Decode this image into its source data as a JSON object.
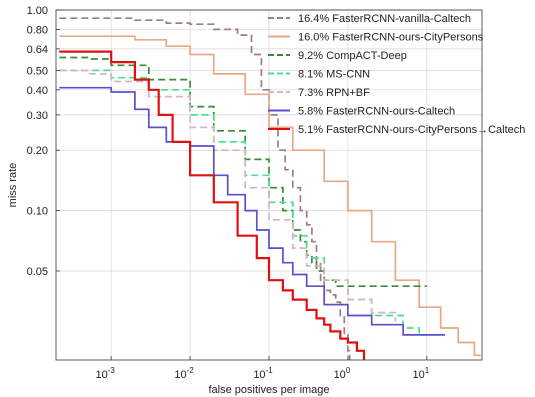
{
  "chart_data": {
    "type": "line",
    "title": "",
    "xlabel": "false positives per image",
    "ylabel": "miss rate",
    "x_scale": "log",
    "y_scale": "log",
    "xlim": [
      0.0002,
      50
    ],
    "ylim": [
      0.018,
      1.0
    ],
    "grid": true,
    "legend_position": "top-right",
    "x_ticks": [
      {
        "value": 0.001,
        "base": "10",
        "exp": "-3"
      },
      {
        "value": 0.01,
        "base": "10",
        "exp": "-2"
      },
      {
        "value": 0.1,
        "base": "10",
        "exp": "-1"
      },
      {
        "value": 1,
        "base": "10",
        "exp": "0"
      },
      {
        "value": 10,
        "base": "10",
        "exp": "1"
      }
    ],
    "y_ticks": [
      {
        "value": 1.0,
        "label": "1.00"
      },
      {
        "value": 0.8,
        "label": "0.80"
      },
      {
        "value": 0.64,
        "label": "0.64"
      },
      {
        "value": 0.5,
        "label": "0.50"
      },
      {
        "value": 0.4,
        "label": "0.40"
      },
      {
        "value": 0.3,
        "label": "0.30"
      },
      {
        "value": 0.2,
        "label": "0.20"
      },
      {
        "value": 0.1,
        "label": "0.10"
      },
      {
        "value": 0.05,
        "label": "0.05"
      }
    ],
    "series": [
      {
        "name": "16.4% FasterRCNN-vanilla-Caltech",
        "color": "#9b7b8b",
        "dash": "dashed",
        "points": [
          [
            0.00022,
            0.91
          ],
          [
            0.001,
            0.91
          ],
          [
            0.002,
            0.89
          ],
          [
            0.005,
            0.86
          ],
          [
            0.01,
            0.85
          ],
          [
            0.02,
            0.8
          ],
          [
            0.04,
            0.75
          ],
          [
            0.06,
            0.6
          ],
          [
            0.08,
            0.4
          ],
          [
            0.1,
            0.3
          ],
          [
            0.13,
            0.2
          ],
          [
            0.16,
            0.16
          ],
          [
            0.2,
            0.13
          ],
          [
            0.25,
            0.1
          ],
          [
            0.3,
            0.085
          ],
          [
            0.35,
            0.07
          ],
          [
            0.4,
            0.055
          ],
          [
            0.45,
            0.045
          ],
          [
            0.5,
            0.04
          ],
          [
            0.6,
            0.038
          ],
          [
            0.7,
            0.035
          ],
          [
            0.8,
            0.03
          ],
          [
            0.9,
            0.024
          ],
          [
            1.0,
            0.02
          ],
          [
            1.05,
            0.018
          ]
        ]
      },
      {
        "name": "16.0% FasterRCNN-ours-CityPersons",
        "color": "#e8a886",
        "dash": "solid",
        "points": [
          [
            0.00022,
            0.74
          ],
          [
            0.001,
            0.74
          ],
          [
            0.002,
            0.71
          ],
          [
            0.005,
            0.66
          ],
          [
            0.01,
            0.6
          ],
          [
            0.02,
            0.48
          ],
          [
            0.05,
            0.38
          ],
          [
            0.1,
            0.26
          ],
          [
            0.2,
            0.2
          ],
          [
            0.5,
            0.14
          ],
          [
            1,
            0.1
          ],
          [
            2,
            0.07
          ],
          [
            4,
            0.045
          ],
          [
            8,
            0.033
          ],
          [
            15,
            0.026
          ],
          [
            25,
            0.022
          ],
          [
            40,
            0.019
          ],
          [
            48,
            0.019
          ]
        ]
      },
      {
        "name": "9.2% CompACT-Deep",
        "color": "#3a8a3a",
        "dash": "dashed",
        "points": [
          [
            0.00022,
            0.58
          ],
          [
            0.0005,
            0.57
          ],
          [
            0.001,
            0.53
          ],
          [
            0.003,
            0.45
          ],
          [
            0.01,
            0.33
          ],
          [
            0.02,
            0.25
          ],
          [
            0.05,
            0.18
          ],
          [
            0.1,
            0.13
          ],
          [
            0.15,
            0.1
          ],
          [
            0.2,
            0.08
          ],
          [
            0.25,
            0.07
          ],
          [
            0.3,
            0.06
          ],
          [
            0.35,
            0.055
          ],
          [
            0.4,
            0.05
          ],
          [
            0.5,
            0.045
          ],
          [
            0.7,
            0.042
          ],
          [
            1,
            0.042
          ],
          [
            2,
            0.042
          ],
          [
            5,
            0.042
          ],
          [
            10,
            0.042
          ]
        ]
      },
      {
        "name": "8.1% MS-CNN",
        "color": "#4de08c",
        "dash": "dashed",
        "points": [
          [
            0.00022,
            0.5
          ],
          [
            0.001,
            0.46
          ],
          [
            0.003,
            0.4
          ],
          [
            0.01,
            0.3
          ],
          [
            0.02,
            0.22
          ],
          [
            0.05,
            0.15
          ],
          [
            0.1,
            0.11
          ],
          [
            0.2,
            0.075
          ],
          [
            0.3,
            0.058
          ],
          [
            0.5,
            0.045
          ],
          [
            1,
            0.036
          ],
          [
            2,
            0.03
          ],
          [
            5,
            0.026
          ],
          [
            8,
            0.024
          ],
          [
            10,
            0.024
          ]
        ]
      },
      {
        "name": "7.3% RPN+BF",
        "color": "#d8b4c2",
        "dash": "dashed",
        "points": [
          [
            0.00022,
            0.5
          ],
          [
            0.0005,
            0.48
          ],
          [
            0.001,
            0.44
          ],
          [
            0.003,
            0.37
          ],
          [
            0.01,
            0.26
          ],
          [
            0.02,
            0.2
          ],
          [
            0.05,
            0.13
          ],
          [
            0.1,
            0.09
          ],
          [
            0.2,
            0.065
          ],
          [
            0.3,
            0.053
          ],
          [
            0.5,
            0.045
          ],
          [
            1,
            0.036
          ],
          [
            2,
            0.031
          ],
          [
            4,
            0.028
          ]
        ]
      },
      {
        "name": "5.8% FasterRCNN-ours-Caltech",
        "color": "#5a4fcf",
        "dash": "solid",
        "points": [
          [
            0.00022,
            0.41
          ],
          [
            0.001,
            0.39
          ],
          [
            0.002,
            0.32
          ],
          [
            0.003,
            0.26
          ],
          [
            0.005,
            0.22
          ],
          [
            0.01,
            0.21
          ],
          [
            0.02,
            0.15
          ],
          [
            0.03,
            0.12
          ],
          [
            0.05,
            0.1
          ],
          [
            0.07,
            0.08
          ],
          [
            0.1,
            0.065
          ],
          [
            0.15,
            0.055
          ],
          [
            0.2,
            0.048
          ],
          [
            0.3,
            0.042
          ],
          [
            0.5,
            0.034
          ],
          [
            1,
            0.03
          ],
          [
            2,
            0.027
          ],
          [
            5,
            0.024
          ],
          [
            10,
            0.024
          ],
          [
            17,
            0.024
          ]
        ]
      },
      {
        "name": "5.1% FasterRCNN-ours-CityPersons→Caltech",
        "color": "#e01010",
        "dash": "solid",
        "points": [
          [
            0.00022,
            0.62
          ],
          [
            0.001,
            0.55
          ],
          [
            0.002,
            0.45
          ],
          [
            0.003,
            0.4
          ],
          [
            0.004,
            0.3
          ],
          [
            0.006,
            0.22
          ],
          [
            0.01,
            0.15
          ],
          [
            0.02,
            0.11
          ],
          [
            0.04,
            0.075
          ],
          [
            0.07,
            0.058
          ],
          [
            0.1,
            0.045
          ],
          [
            0.15,
            0.04
          ],
          [
            0.2,
            0.036
          ],
          [
            0.3,
            0.032
          ],
          [
            0.4,
            0.029
          ],
          [
            0.5,
            0.027
          ],
          [
            0.6,
            0.025
          ],
          [
            0.8,
            0.023
          ],
          [
            1,
            0.022
          ],
          [
            1.3,
            0.02
          ],
          [
            1.6,
            0.018
          ]
        ]
      }
    ]
  }
}
